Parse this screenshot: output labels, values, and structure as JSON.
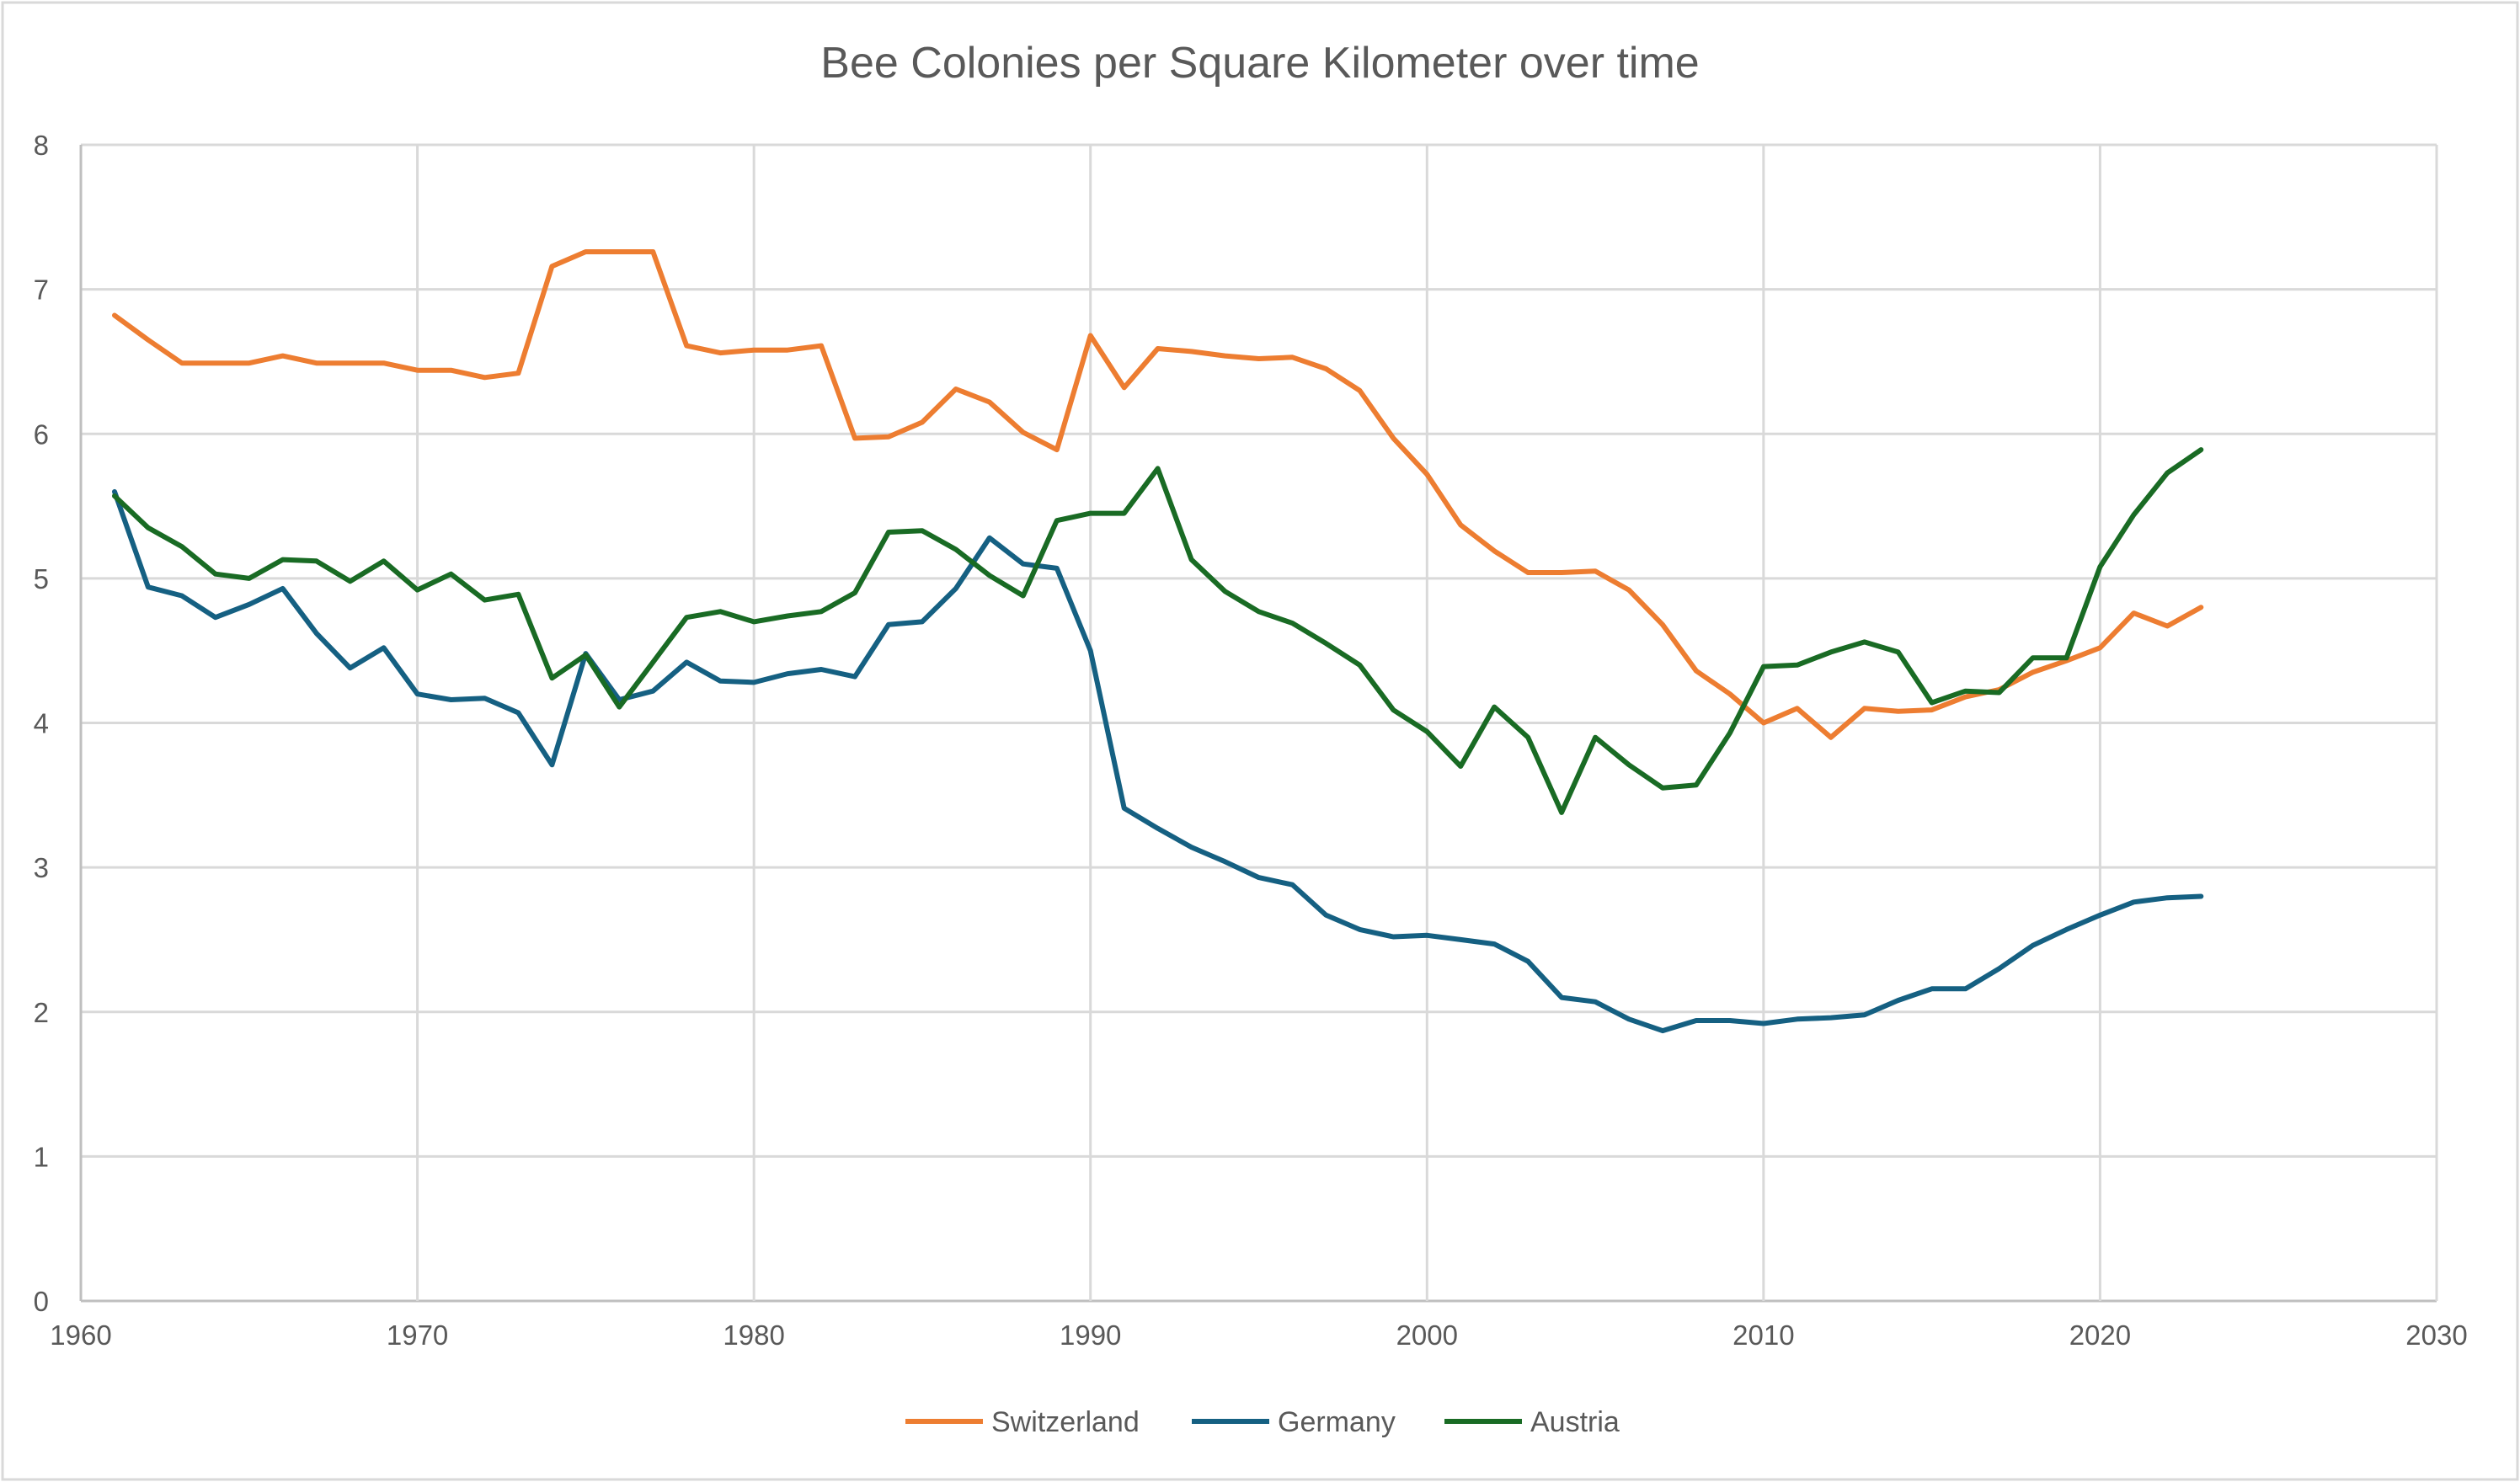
{
  "chart_data": {
    "type": "line",
    "title": "Bee Colonies per Square Kilometer over time",
    "xlabel": "",
    "ylabel": "",
    "xlim": [
      1960,
      2030
    ],
    "ylim": [
      0,
      8
    ],
    "x_ticks": [
      "1960",
      "1970",
      "1980",
      "1990",
      "2000",
      "2010",
      "2020",
      "2030"
    ],
    "y_ticks": [
      "0",
      "1",
      "2",
      "3",
      "4",
      "5",
      "6",
      "7",
      "8"
    ],
    "grid": true,
    "legend_position": "bottom",
    "x": [
      1961,
      1962,
      1963,
      1964,
      1965,
      1966,
      1967,
      1968,
      1969,
      1970,
      1971,
      1972,
      1973,
      1974,
      1975,
      1976,
      1977,
      1978,
      1979,
      1980,
      1981,
      1982,
      1983,
      1984,
      1985,
      1986,
      1987,
      1988,
      1989,
      1990,
      1991,
      1992,
      1993,
      1994,
      1995,
      1996,
      1997,
      1998,
      1999,
      2000,
      2001,
      2002,
      2003,
      2004,
      2005,
      2006,
      2007,
      2008,
      2009,
      2010,
      2011,
      2012,
      2013,
      2014,
      2015,
      2016,
      2017,
      2018,
      2019,
      2020,
      2021,
      2022,
      2023
    ],
    "series": [
      {
        "name": "Switzerland",
        "color": "#ED7D31",
        "values": [
          6.82,
          6.65,
          6.49,
          6.49,
          6.49,
          6.54,
          6.49,
          6.49,
          6.49,
          6.44,
          6.44,
          6.39,
          6.42,
          7.16,
          7.26,
          7.26,
          7.26,
          6.61,
          6.56,
          6.58,
          6.58,
          6.61,
          5.97,
          5.98,
          6.08,
          6.31,
          6.22,
          6.01,
          5.89,
          6.68,
          6.32,
          6.59,
          6.57,
          6.54,
          6.52,
          6.53,
          6.45,
          6.3,
          5.97,
          5.72,
          5.37,
          5.19,
          5.04,
          5.04,
          5.05,
          4.92,
          4.68,
          4.36,
          4.2,
          4.0,
          4.1,
          3.9,
          4.1,
          4.08,
          4.09,
          4.18,
          4.23,
          4.35,
          4.43,
          4.52,
          4.76,
          4.67,
          4.8
        ]
      },
      {
        "name": "Germany",
        "color": "#156082",
        "values": [
          5.6,
          4.94,
          4.88,
          4.73,
          4.82,
          4.93,
          4.62,
          4.38,
          4.52,
          4.2,
          4.16,
          4.17,
          4.07,
          3.71,
          4.48,
          4.16,
          4.22,
          4.42,
          4.29,
          4.28,
          4.34,
          4.37,
          4.32,
          4.68,
          4.7,
          4.93,
          5.28,
          5.1,
          5.07,
          4.5,
          3.41,
          3.27,
          3.14,
          3.04,
          2.93,
          2.88,
          2.67,
          2.57,
          2.52,
          2.53,
          2.5,
          2.47,
          2.35,
          2.1,
          2.07,
          1.95,
          1.87,
          1.94,
          1.94,
          1.92,
          1.95,
          1.96,
          1.98,
          2.08,
          2.16,
          2.16,
          2.3,
          2.46,
          2.57,
          2.67,
          2.76,
          2.79,
          2.8
        ]
      },
      {
        "name": "Austria",
        "color": "#196B24",
        "values": [
          5.57,
          5.35,
          5.22,
          5.03,
          5.0,
          5.13,
          5.12,
          4.98,
          5.12,
          4.92,
          5.03,
          4.85,
          4.89,
          4.31,
          4.47,
          4.11,
          4.42,
          4.73,
          4.77,
          4.7,
          4.74,
          4.77,
          4.9,
          5.32,
          5.33,
          5.2,
          5.02,
          4.88,
          5.4,
          5.45,
          5.45,
          5.76,
          5.13,
          4.91,
          4.77,
          4.69,
          4.55,
          4.4,
          4.09,
          3.94,
          3.7,
          4.11,
          3.9,
          3.38,
          3.9,
          3.71,
          3.55,
          3.57,
          3.93,
          4.39,
          4.4,
          4.49,
          4.56,
          4.49,
          4.14,
          4.22,
          4.21,
          4.45,
          4.45,
          5.08,
          5.44,
          5.73,
          5.89
        ]
      }
    ]
  }
}
